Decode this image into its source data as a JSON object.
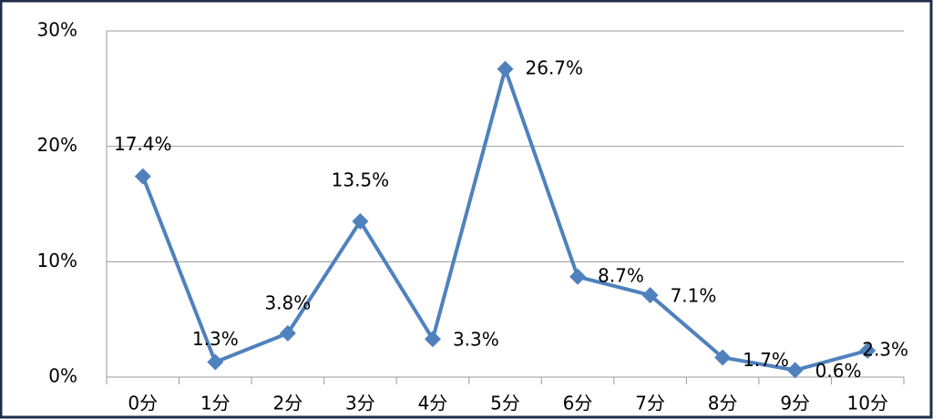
{
  "chart_data": {
    "type": "line",
    "categories": [
      "0分",
      "1分",
      "2分",
      "3分",
      "4分",
      "5分",
      "6分",
      "7分",
      "8分",
      "9分",
      "10分"
    ],
    "series": [
      {
        "color": "#4f81bd",
        "values": [
          17.4,
          1.3,
          3.8,
          13.5,
          3.3,
          26.7,
          8.7,
          7.1,
          1.7,
          0.6,
          2.3
        ],
        "value_labels": [
          "17.4%",
          "1.3%",
          "3.8%",
          "13.5%",
          "3.3%",
          "26.7%",
          "8.7%",
          "7.1%",
          "1.7%",
          "0.6%",
          "2.3%"
        ]
      }
    ],
    "ylim": [
      0,
      30
    ],
    "yticks": [
      {
        "value": 0,
        "label": "0%"
      },
      {
        "value": 10,
        "label": "10%"
      },
      {
        "value": 20,
        "label": "20%"
      },
      {
        "value": 30,
        "label": "30%"
      }
    ],
    "grid": true
  }
}
